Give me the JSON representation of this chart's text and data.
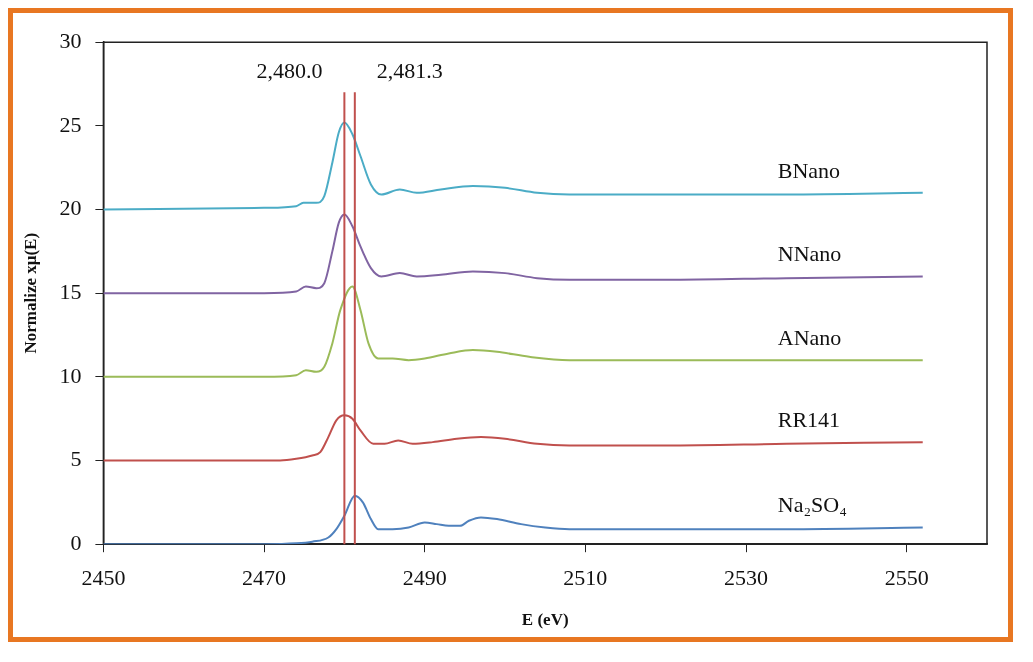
{
  "chart_data": {
    "type": "line",
    "xlabel": "E (eV)",
    "ylabel": "Normalize xμ(E)",
    "xlim": [
      2450,
      2560
    ],
    "xticks": [
      2450,
      2470,
      2490,
      2510,
      2530,
      2550
    ],
    "ylim": [
      0,
      30
    ],
    "yticks": [
      0,
      5,
      10,
      15,
      20,
      25,
      30
    ],
    "grid": false,
    "legend": false,
    "marker": "none",
    "line_style": "solid",
    "ref_lines": [
      {
        "axis": "x",
        "value": 2480.0,
        "label": "2,480.0",
        "color": "#c0504d"
      },
      {
        "axis": "x",
        "value": 2481.3,
        "label": "2,481.3",
        "color": "#c0504d"
      }
    ],
    "series": [
      {
        "name": "BNano",
        "color": "#4bacc6",
        "x": [
          2450,
          2470,
          2474,
          2474.9,
          2476.5,
          2477.5,
          2478.5,
          2479.3,
          2480,
          2481,
          2482,
          2483.3,
          2484.6,
          2486.9,
          2489,
          2492,
          2496,
          2500,
          2504,
          2508,
          2520,
          2535,
          2552
        ],
        "values": [
          20,
          20.1,
          20.2,
          20.4,
          20.4,
          20.8,
          22.8,
          24.6,
          25.2,
          24.5,
          23.2,
          21.5,
          20.9,
          21.2,
          21.0,
          21.2,
          21.4,
          21.3,
          21.0,
          20.9,
          20.9,
          20.9,
          21.0
        ]
      },
      {
        "name": "NNano",
        "color": "#8064a2",
        "x": [
          2450,
          2470,
          2474,
          2475.2,
          2476.5,
          2477.5,
          2478.5,
          2479.3,
          2480,
          2481,
          2482,
          2483.3,
          2484.6,
          2486.9,
          2489,
          2492,
          2496,
          2500,
          2504,
          2508,
          2520,
          2535,
          2552
        ],
        "values": [
          15,
          15.0,
          15.1,
          15.4,
          15.3,
          15.6,
          17.5,
          19.2,
          19.7,
          19.0,
          17.8,
          16.5,
          16.0,
          16.2,
          16.0,
          16.1,
          16.3,
          16.2,
          15.9,
          15.8,
          15.8,
          15.9,
          16.0
        ]
      },
      {
        "name": "ANano",
        "color": "#9bbb59",
        "x": [
          2450,
          2470,
          2474,
          2475.2,
          2476.5,
          2477.5,
          2478.5,
          2479.5,
          2481,
          2482,
          2483,
          2484.2,
          2486,
          2488,
          2490,
          2493,
          2496,
          2499,
          2503,
          2508,
          2520,
          2535,
          2552
        ],
        "values": [
          10,
          10.0,
          10.1,
          10.4,
          10.3,
          10.6,
          12.0,
          14.0,
          15.4,
          14.0,
          12.0,
          11.1,
          11.1,
          11.0,
          11.1,
          11.4,
          11.6,
          11.5,
          11.2,
          11.0,
          11.0,
          11.0,
          11.0
        ]
      },
      {
        "name": "RR141",
        "color": "#c0504d",
        "x": [
          2450,
          2472,
          2474,
          2476,
          2477,
          2478,
          2479,
          2480,
          2481,
          2482,
          2483.6,
          2485,
          2486.7,
          2488.5,
          2491,
          2494,
          2497,
          2500,
          2504,
          2508,
          2520,
          2535,
          2552
        ],
        "values": [
          5,
          5.0,
          5.1,
          5.3,
          5.5,
          6.4,
          7.4,
          7.7,
          7.5,
          6.8,
          6.0,
          6.0,
          6.2,
          6.0,
          6.1,
          6.3,
          6.4,
          6.3,
          6.0,
          5.9,
          5.9,
          6.0,
          6.1
        ]
      },
      {
        "name": "Na₂SO₄",
        "color": "#4f81bd",
        "x": [
          2450,
          2470,
          2474,
          2476,
          2478,
          2479,
          2480,
          2481.3,
          2482.3,
          2483.3,
          2484.2,
          2486,
          2488,
          2490,
          2491.5,
          2493,
          2494.4,
          2495.5,
          2497,
          2499,
          2502,
          2505,
          2508,
          2520,
          2535,
          2552
        ],
        "values": [
          0,
          0,
          0.05,
          0.15,
          0.4,
          0.9,
          1.7,
          2.9,
          2.5,
          1.5,
          0.9,
          0.9,
          1.0,
          1.3,
          1.2,
          1.1,
          1.1,
          1.4,
          1.6,
          1.5,
          1.2,
          1.0,
          0.9,
          0.9,
          0.9,
          1.0
        ]
      }
    ]
  }
}
